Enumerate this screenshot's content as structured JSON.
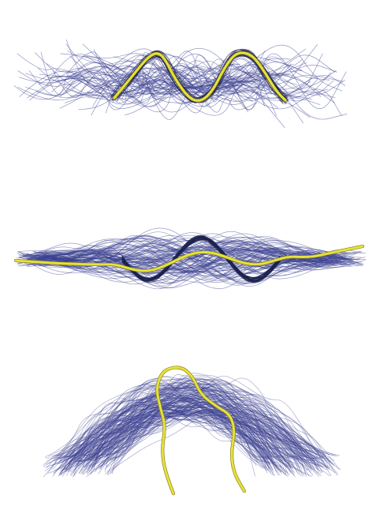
{
  "figure": {
    "description_panels": [
      "top",
      "middle",
      "bottom"
    ],
    "colors": {
      "background": "#ffffff",
      "bundle_line": "#3a3f8f",
      "bundle_dark": "#1d2350",
      "highlight": "#e8e23a",
      "highlight_edge": "#8a8520"
    },
    "panels": [
      {
        "name": "panel-top-m-shape",
        "bundle_count": 70,
        "dense_core_count": 28
      },
      {
        "name": "panel-middle-wave",
        "bundle_count": 110,
        "dense_core_count": 30
      },
      {
        "name": "panel-bottom-arch",
        "bundle_count": 190,
        "dense_core_count": 0
      }
    ]
  }
}
